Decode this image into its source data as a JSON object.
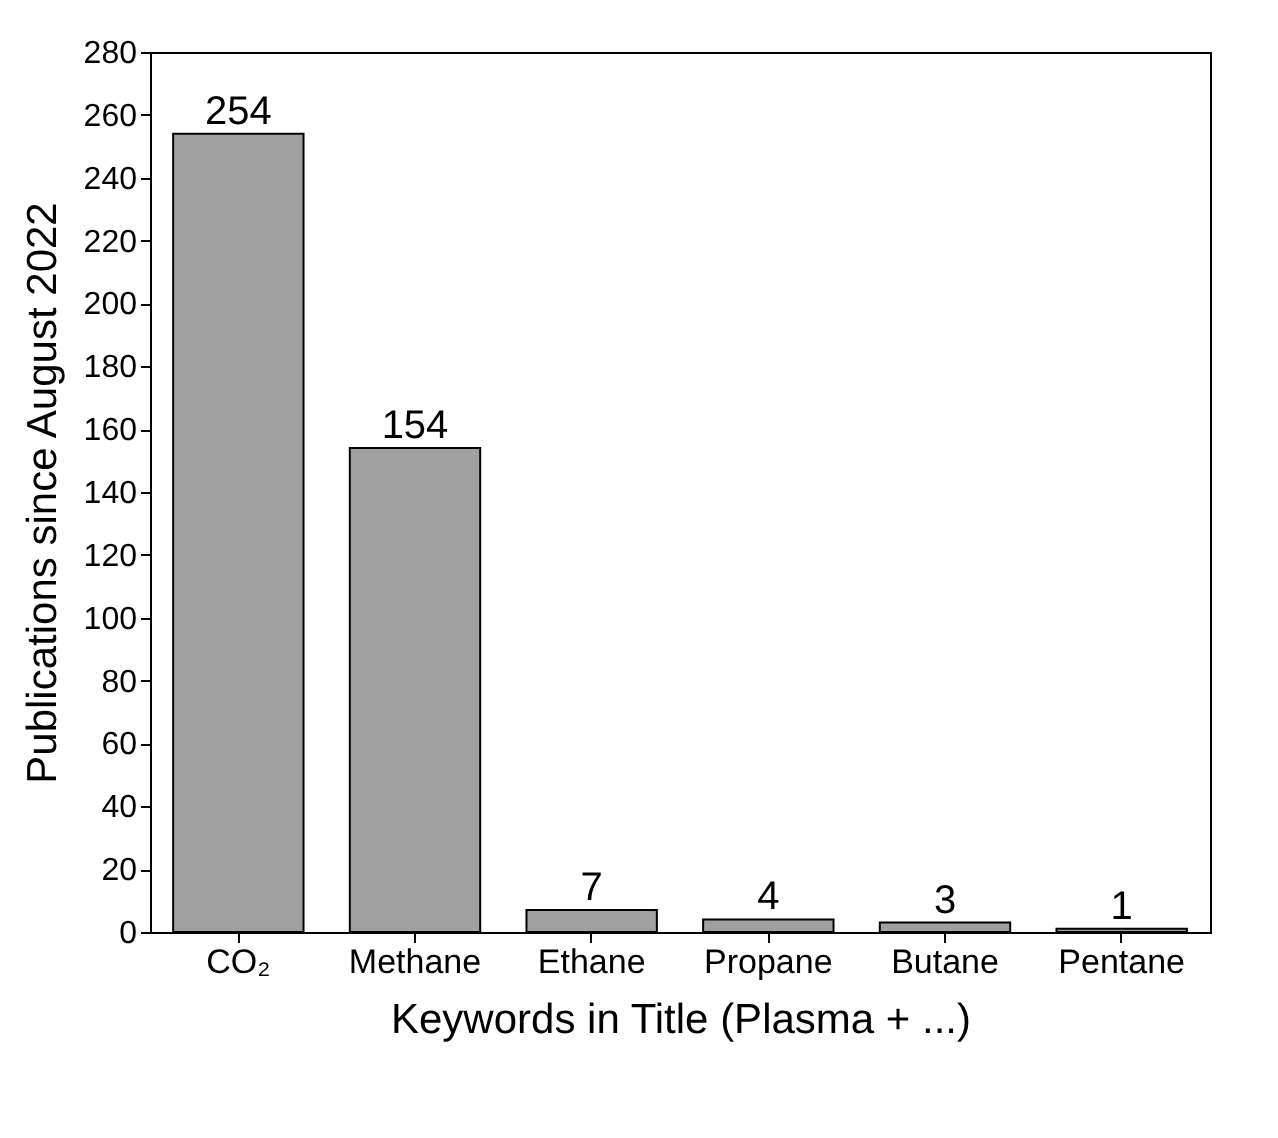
{
  "chart_data": {
    "type": "bar",
    "xlabel": "Keywords in Title (Plasma + ...)",
    "ylabel": "Publications since August 2022",
    "categories": [
      "CO₂",
      "Methane",
      "Ethane",
      "Propane",
      "Butane",
      "Pentane"
    ],
    "values": [
      254,
      154,
      7,
      4,
      3,
      1
    ],
    "color": "#a0a0a0",
    "ylim": [
      0,
      280
    ],
    "yticks": [
      0,
      20,
      40,
      60,
      80,
      100,
      120,
      140,
      160,
      180,
      200,
      220,
      240,
      260,
      280
    ],
    "data_labels": true,
    "grid": false
  }
}
